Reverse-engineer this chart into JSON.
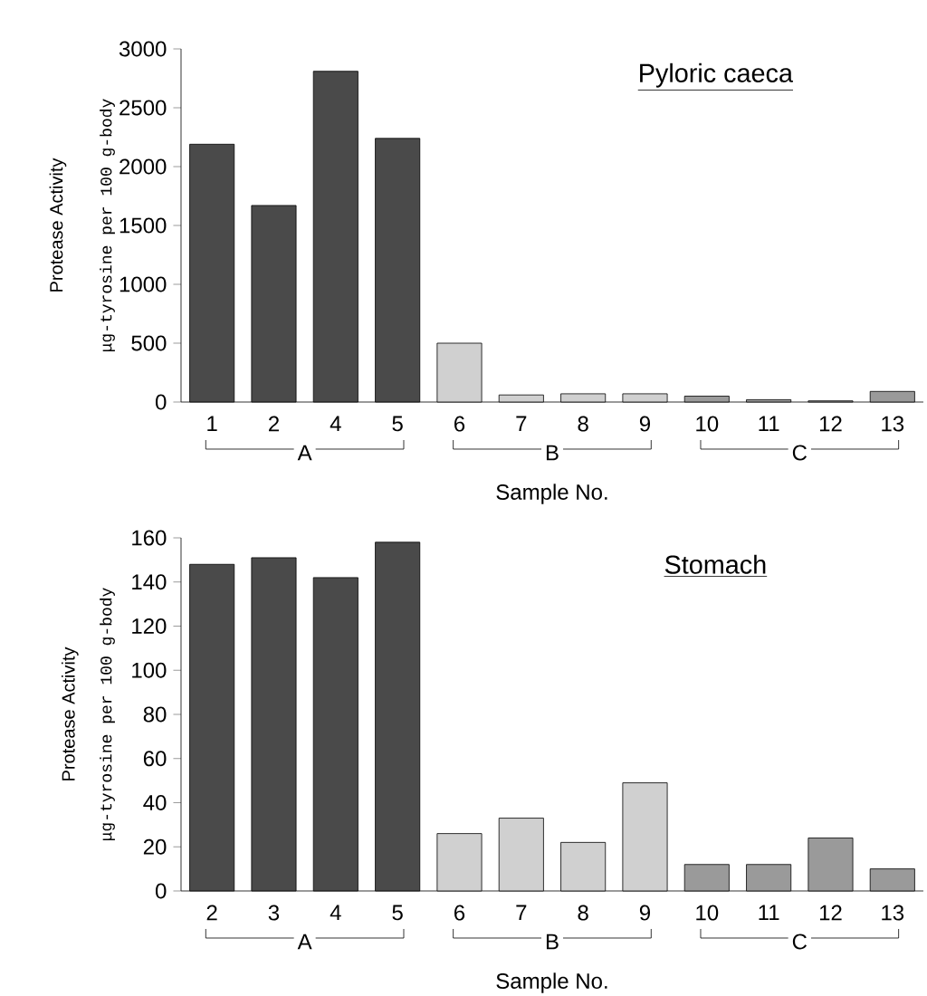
{
  "chart_data": [
    {
      "type": "bar",
      "title": "Pyloric caeca",
      "xlabel": "Sample No.",
      "ylabel": "Protease Activity",
      "annotations": [
        "μg-tyrosine per 100 g-body",
        "A",
        "B",
        "C"
      ],
      "categories": [
        "1",
        "2",
        "4",
        "5",
        "6",
        "7",
        "8",
        "9",
        "10",
        "11",
        "12",
        "13"
      ],
      "values": [
        2190,
        1670,
        2810,
        2240,
        500,
        60,
        70,
        70,
        50,
        20,
        10,
        90
      ],
      "colors": [
        "#4a4a4a",
        "#4a4a4a",
        "#4a4a4a",
        "#4a4a4a",
        "#d0d0d0",
        "#d0d0d0",
        "#d0d0d0",
        "#d0d0d0",
        "#9a9a9a",
        "#9a9a9a",
        "#9a9a9a",
        "#9a9a9a"
      ],
      "ylim": [
        0,
        3000
      ],
      "yticks": [
        0,
        500,
        1000,
        1500,
        2000,
        2500,
        3000
      ],
      "grid": false
    },
    {
      "type": "bar",
      "title": "Stomach",
      "xlabel": "Sample No.",
      "ylabel": "Protease Activity",
      "annotations": [
        "μg-tyrosine per 100 g-body",
        "A",
        "B",
        "C"
      ],
      "categories": [
        "2",
        "3",
        "4",
        "5",
        "6",
        "7",
        "8",
        "9",
        "10",
        "11",
        "12",
        "13"
      ],
      "values": [
        148,
        151,
        142,
        158,
        26,
        33,
        22,
        49,
        12,
        12,
        24,
        10
      ],
      "colors": [
        "#4a4a4a",
        "#4a4a4a",
        "#4a4a4a",
        "#4a4a4a",
        "#d0d0d0",
        "#d0d0d0",
        "#d0d0d0",
        "#d0d0d0",
        "#9a9a9a",
        "#9a9a9a",
        "#9a9a9a",
        "#9a9a9a"
      ],
      "ylim": [
        0,
        160
      ],
      "yticks": [
        0,
        20,
        40,
        60,
        80,
        100,
        120,
        140,
        160
      ],
      "grid": false
    }
  ]
}
